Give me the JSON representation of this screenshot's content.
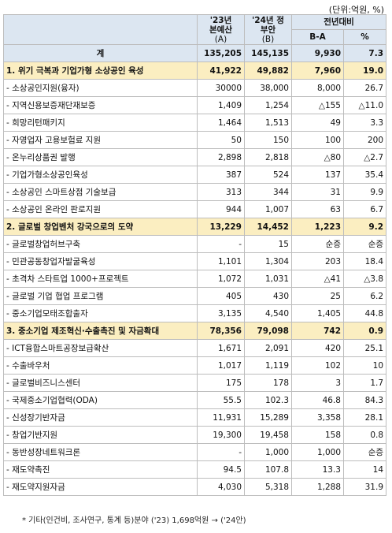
{
  "unit": "(단위:억원, %)",
  "headers": {
    "col23": [
      "'23년",
      "본예산",
      "(A)"
    ],
    "col24": [
      "'24년 정",
      "부안",
      "(B)"
    ],
    "yoy": "전년대비",
    "ba": "B-A",
    "pct": "%"
  },
  "rows": [
    {
      "type": "total",
      "name": "계",
      "a": "135,205",
      "b": "145,135",
      "ba": "9,930",
      "pct": "7.3"
    },
    {
      "type": "cat",
      "name": "1. 위기 극복과 기업가형 소상공인 육성",
      "a": "41,922",
      "b": "49,882",
      "ba": "7,960",
      "pct": "19.0"
    },
    {
      "type": "item",
      "name": "- 소상공인지원(융자)",
      "a": "30000",
      "b": "38,000",
      "ba": "8,000",
      "pct": "26.7"
    },
    {
      "type": "item",
      "name": "- 지역신용보증재단재보증",
      "a": "1,409",
      "b": "1,254",
      "ba": "△155",
      "pct": "△11.0"
    },
    {
      "type": "item",
      "name": "- 희망리턴패키지",
      "a": "1,464",
      "b": "1,513",
      "ba": "49",
      "pct": "3.3"
    },
    {
      "type": "item",
      "name": "- 자영업자 고용보험료 지원",
      "a": "50",
      "b": "150",
      "ba": "100",
      "pct": "200"
    },
    {
      "type": "item",
      "name": "- 온누리상품권 발행",
      "a": "2,898",
      "b": "2,818",
      "ba": "△80",
      "pct": "△2.7"
    },
    {
      "type": "item",
      "name": "- 기업가형소상공인육성",
      "a": "387",
      "b": "524",
      "ba": "137",
      "pct": "35.4"
    },
    {
      "type": "item",
      "name": "- 소상공인 스마트상점 기술보급",
      "a": "313",
      "b": "344",
      "ba": "31",
      "pct": "9.9"
    },
    {
      "type": "item",
      "name": "- 소상공인 온라인 판로지원",
      "a": "944",
      "b": "1,007",
      "ba": "63",
      "pct": "6.7"
    },
    {
      "type": "cat",
      "name": "2. 글로벌 창업벤처 강국으로의 도약",
      "a": "13,229",
      "b": "14,452",
      "ba": "1,223",
      "pct": "9.2"
    },
    {
      "type": "item",
      "name": "- 글로벌창업허브구축",
      "a": "-",
      "b": "15",
      "ba": "순증",
      "pct": "순증"
    },
    {
      "type": "item",
      "name": "- 민관공동창업자발굴육성",
      "a": "1,101",
      "b": "1,304",
      "ba": "203",
      "pct": "18.4"
    },
    {
      "type": "item",
      "name": "- 초격차 스타트업 1000+프로젝트",
      "a": "1,072",
      "b": "1,031",
      "ba": "△41",
      "pct": "△3.8"
    },
    {
      "type": "item",
      "name": "- 글로벌 기업 협업 프로그램",
      "a": "405",
      "b": "430",
      "ba": "25",
      "pct": "6.2"
    },
    {
      "type": "item",
      "name": "- 중소기업모태조합출자",
      "a": "3,135",
      "b": "4,540",
      "ba": "1,405",
      "pct": "44.8"
    },
    {
      "type": "cat",
      "name": "3. 중소기업 제조혁신·수출촉진 및 자금확대",
      "a": "78,356",
      "b": "79,098",
      "ba": "742",
      "pct": "0.9"
    },
    {
      "type": "item",
      "name": "- ICT융합스마트공장보급확산",
      "a": "1,671",
      "b": "2,091",
      "ba": "420",
      "pct": "25.1"
    },
    {
      "type": "item",
      "name": "- 수출바우처",
      "a": "1,017",
      "b": "1,119",
      "ba": "102",
      "pct": "10"
    },
    {
      "type": "item",
      "name": "- 글로벌비즈니스센터",
      "a": "175",
      "b": "178",
      "ba": "3",
      "pct": "1.7"
    },
    {
      "type": "item",
      "name": "- 국제중소기업협력(ODA)",
      "a": "55.5",
      "b": "102.3",
      "ba": "46.8",
      "pct": "84.3"
    },
    {
      "type": "item",
      "name": "- 신성장기반자금",
      "a": "11,931",
      "b": "15,289",
      "ba": "3,358",
      "pct": "28.1"
    },
    {
      "type": "item",
      "name": "- 창업기반지원",
      "a": "19,300",
      "b": "19,458",
      "ba": "158",
      "pct": "0.8"
    },
    {
      "type": "item",
      "name": "- 동반성장네트워크론",
      "a": "-",
      "b": "1,000",
      "ba": "1,000",
      "pct": "순증"
    },
    {
      "type": "item",
      "name": "- 재도약촉진",
      "a": "94.5",
      "b": "107.8",
      "ba": "13.3",
      "pct": "14"
    },
    {
      "type": "item",
      "name": "- 재도약지원자금",
      "a": "4,030",
      "b": "5,318",
      "ba": "1,288",
      "pct": "31.9"
    }
  ],
  "footnote": "* 기타(인건비, 조사연구, 통계 등)분야 ('23) 1,698억원 → ('24안)"
}
